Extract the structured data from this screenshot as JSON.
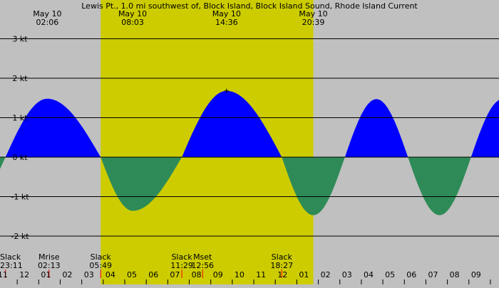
{
  "chart_data": {
    "type": "area",
    "title": "Lewis Pt., 1.0 mi southwest of, Block Island, Block Island Sound, Rhode Island Current",
    "unit": "kt",
    "y_ticks": [
      {
        "value": 3,
        "label": "3 kt"
      },
      {
        "value": 2,
        "label": "2 kt"
      },
      {
        "value": 1,
        "label": "1 kt"
      },
      {
        "value": 0,
        "label": "0 kt"
      },
      {
        "value": -1,
        "label": "-1 kt"
      },
      {
        "value": -2,
        "label": "-2 kt"
      }
    ],
    "ylim": [
      -2.35,
      3.2
    ],
    "x_range_hours": [
      -1.2,
      33.6
    ],
    "x_hour_labels": [
      "11",
      "12",
      "01",
      "02",
      "03",
      "04",
      "05",
      "06",
      "07",
      "08",
      "09",
      "10",
      "11",
      "12",
      "01",
      "02",
      "03",
      "04",
      "05",
      "06",
      "07",
      "08",
      "09"
    ],
    "x_hour_label_start": -1,
    "daylight": {
      "start_hour": 5.82,
      "end_hour": 20.65,
      "color": "#cccc00"
    },
    "night_color": "#c0c0c0",
    "flood_color": "#0000ff",
    "ebb_color": "#2e8b57",
    "events": [
      {
        "name": "Slack",
        "time": "23:11",
        "hour": -0.82
      },
      {
        "name": "Max flood",
        "date": "May 10",
        "time": "02:06",
        "hour": 2.1,
        "value": 1.48
      },
      {
        "name": "Slack",
        "time": "05:49",
        "hour": 5.82
      },
      {
        "name": "Max ebb",
        "date": "May 10",
        "time": "08:03",
        "hour": 8.05,
        "value": -1.36
      },
      {
        "name": "Slack",
        "time": "11:29",
        "hour": 11.48
      },
      {
        "name": "Max flood",
        "date": "May 10",
        "time": "14:36",
        "hour": 14.6,
        "value": 1.68
      },
      {
        "name": "Slack",
        "time": "18:27",
        "hour": 18.45
      },
      {
        "name": "Max ebb",
        "date": "May 10",
        "time": "20:39",
        "hour": 20.65,
        "value": -1.47
      }
    ],
    "top_labels": [
      {
        "date": "May 10",
        "time": "02:06",
        "hour": 2.1
      },
      {
        "date": "May 10",
        "time": "08:03",
        "hour": 8.05
      },
      {
        "date": "May 10",
        "time": "14:36",
        "hour": 14.6
      },
      {
        "date": "May 10",
        "time": "20:39",
        "hour": 20.65
      }
    ],
    "bottom_events": [
      {
        "name": "Slack",
        "time": "23:11",
        "hour": -0.82
      },
      {
        "name": "Mrise",
        "time": "02:13",
        "hour": 2.22
      },
      {
        "name": "Slack",
        "time": "05:49",
        "hour": 5.82
      },
      {
        "name": "Slack",
        "time": "11:29",
        "hour": 11.48
      },
      {
        "name": "Mset",
        "time": "12:56",
        "hour": 12.93
      },
      {
        "name": "Slack",
        "time": "18:27",
        "hour": 18.45
      }
    ],
    "grid": true
  }
}
